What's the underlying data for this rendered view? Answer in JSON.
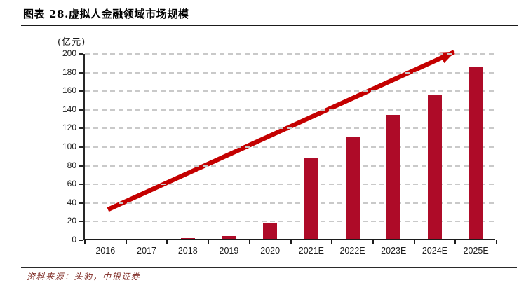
{
  "header": {
    "title": "图表 28.虚拟人金融领域市场规模"
  },
  "footer": {
    "source": "资料来源：头豹，中银证券"
  },
  "chart_data": {
    "type": "bar",
    "title": "虚拟人金融领域市场规模",
    "unit_label": "(亿元)",
    "categories": [
      "2016",
      "2017",
      "2018",
      "2019",
      "2020",
      "2021E",
      "2022E",
      "2023E",
      "2024E",
      "2025E"
    ],
    "values": [
      0,
      0,
      1,
      3,
      17,
      87,
      110,
      133,
      155,
      184
    ],
    "xlabel": "",
    "ylabel": "(亿元)",
    "ylim": [
      0,
      200
    ],
    "yticks": [
      0,
      20,
      40,
      60,
      80,
      100,
      120,
      140,
      160,
      180,
      200
    ],
    "grid": "horizontal-dashed",
    "legend": "none",
    "bar_color": "#ae0b28",
    "grid_color": "#c9c9c9",
    "axis_color": "#262626",
    "trend_arrow": {
      "color": "#c40000",
      "from_x_frac": 0.056,
      "from_value": 33,
      "to_x_frac": 0.897,
      "to_value": 202
    }
  }
}
